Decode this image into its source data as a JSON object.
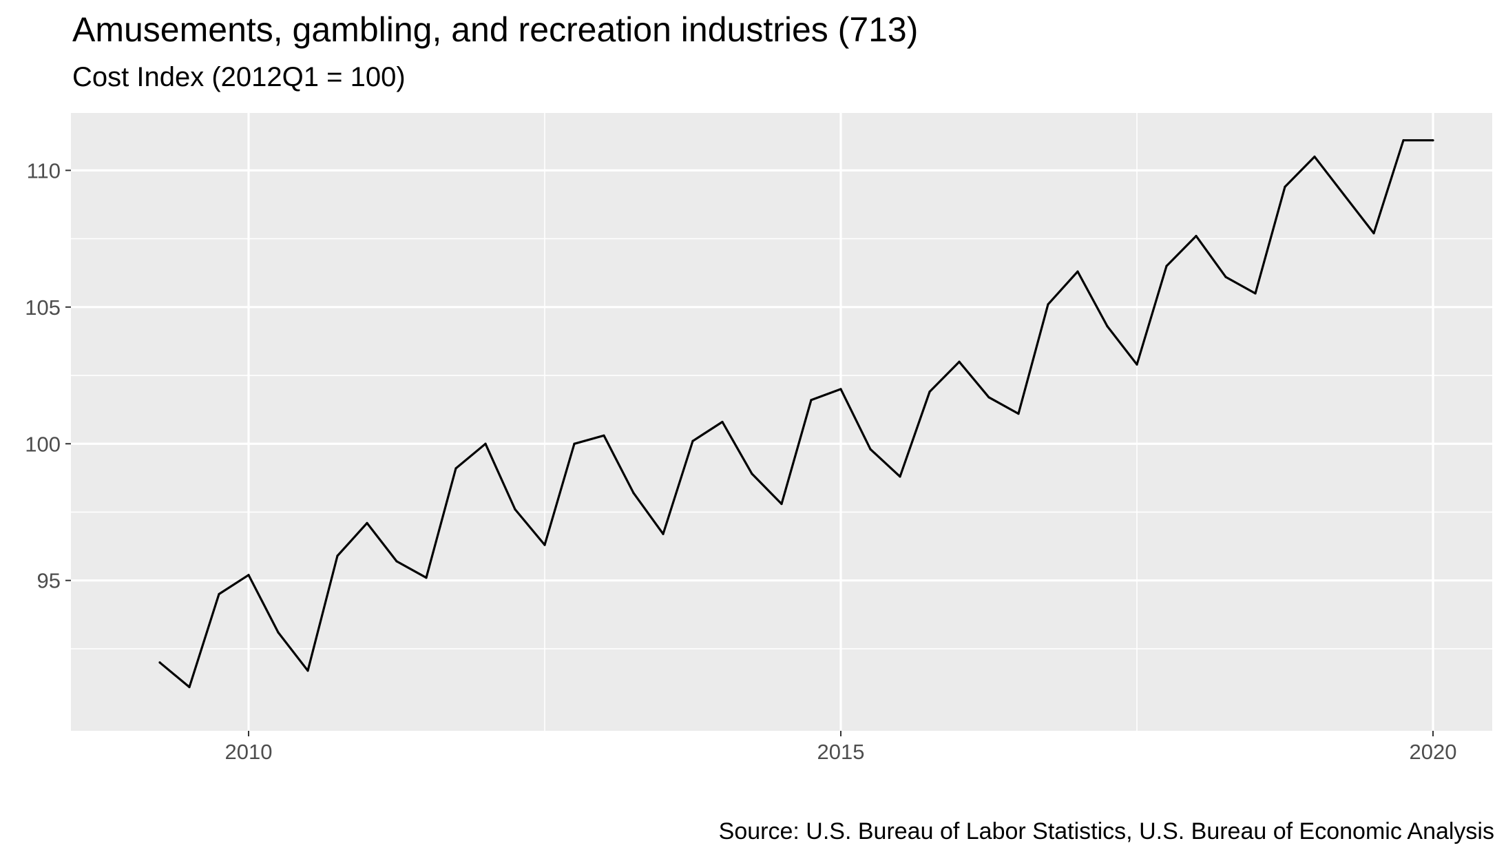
{
  "chart_data": {
    "type": "line",
    "title": "Amusements, gambling, and recreation industries (713)",
    "subtitle": "Cost Index (2012Q1 = 100)",
    "caption": "Source: U.S. Bureau of Labor Statistics, U.S. Bureau of Economic Analysis",
    "xlabel": "",
    "ylabel": "",
    "x_ticks": [
      2010,
      2015,
      2020
    ],
    "y_ticks": [
      95,
      100,
      105,
      110
    ],
    "xlim": [
      2008.5,
      2020.5
    ],
    "ylim": [
      89.5,
      112.1
    ],
    "grid": true,
    "series": [
      {
        "color": "#000000",
        "x": [
          2009.25,
          2009.5,
          2009.75,
          2010.0,
          2010.25,
          2010.5,
          2010.75,
          2011.0,
          2011.25,
          2011.5,
          2011.75,
          2012.0,
          2012.25,
          2012.5,
          2012.75,
          2013.0,
          2013.25,
          2013.5,
          2013.75,
          2014.0,
          2014.25,
          2014.5,
          2014.75,
          2015.0,
          2015.25,
          2015.5,
          2015.75,
          2016.0,
          2016.25,
          2016.5,
          2016.75,
          2017.0,
          2017.25,
          2017.5,
          2017.75,
          2018.0,
          2018.25,
          2018.5,
          2018.75,
          2019.0,
          2019.25,
          2019.5,
          2019.75,
          2020.0
        ],
        "values": [
          92.0,
          91.1,
          94.5,
          95.2,
          93.1,
          91.7,
          95.9,
          97.1,
          95.7,
          95.1,
          99.1,
          100.0,
          97.6,
          96.3,
          100.0,
          100.3,
          98.2,
          96.7,
          100.1,
          100.8,
          98.9,
          97.8,
          101.6,
          102.0,
          99.8,
          98.8,
          101.9,
          103.0,
          101.7,
          101.1,
          105.1,
          106.3,
          104.3,
          102.9,
          106.5,
          107.6,
          106.1,
          105.5,
          109.4,
          110.5,
          109.1,
          107.7,
          111.1,
          111.1
        ]
      }
    ]
  }
}
